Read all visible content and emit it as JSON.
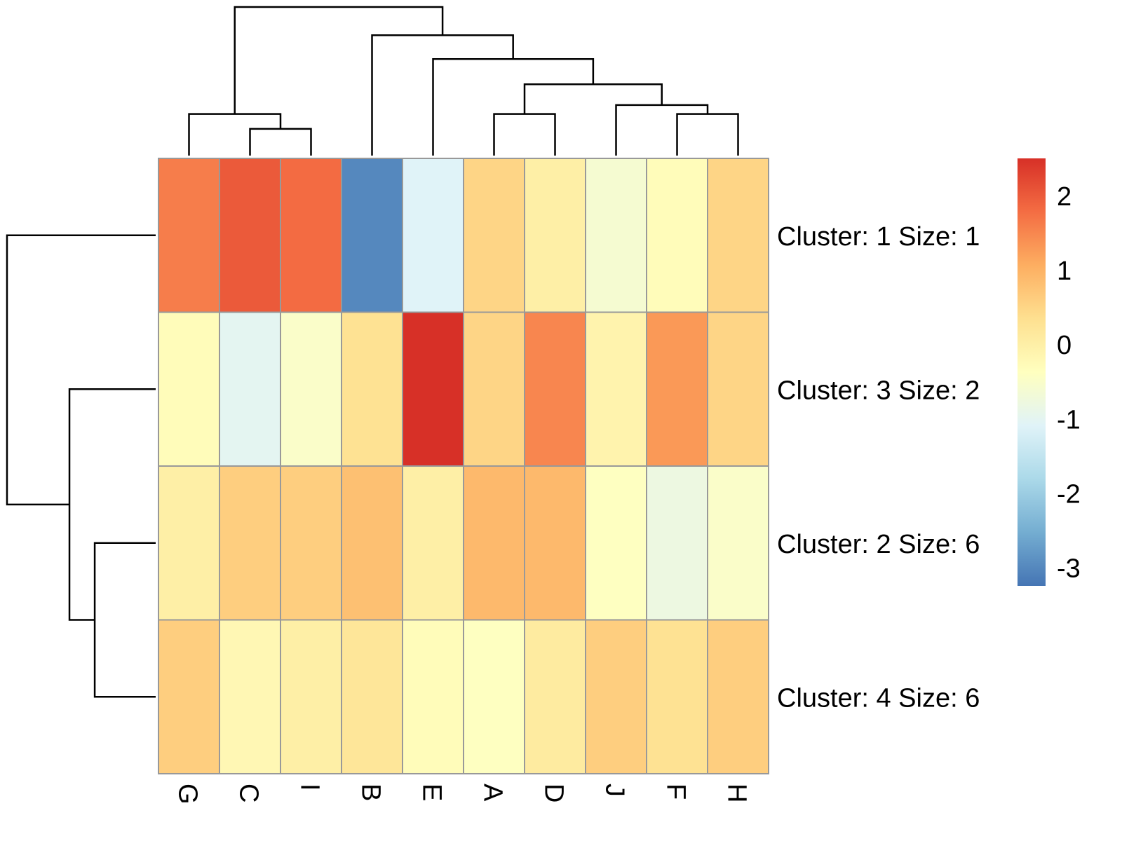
{
  "chart_data": {
    "type": "heatmap",
    "title": "",
    "columns": [
      "G",
      "C",
      "I",
      "B",
      "E",
      "A",
      "D",
      "J",
      "F",
      "H"
    ],
    "rows": [
      {
        "label": "Cluster: 1 Size: 1",
        "values": [
          1.6,
          2.0,
          1.8,
          -3.0,
          -1.1,
          0.5,
          0.0,
          -0.6,
          -0.3,
          0.5
        ]
      },
      {
        "label": "Cluster: 3 Size: 2",
        "values": [
          -0.3,
          -1.0,
          -0.5,
          0.3,
          2.5,
          0.5,
          1.5,
          -0.1,
          1.3,
          0.5
        ]
      },
      {
        "label": "Cluster: 2 Size: 6",
        "values": [
          0.0,
          0.6,
          0.6,
          0.8,
          0.0,
          0.9,
          0.9,
          -0.4,
          -0.8,
          -0.5
        ]
      },
      {
        "label": "Cluster: 4 Size: 6",
        "values": [
          0.6,
          -0.2,
          0.0,
          0.2,
          -0.3,
          -0.4,
          0.1,
          0.6,
          0.3,
          0.6
        ]
      }
    ],
    "colorbar": {
      "range": [
        -3.25,
        2.5
      ],
      "ticks": [
        "2",
        "1",
        "0",
        "-1",
        "-2",
        "-3"
      ],
      "tick_values": [
        2,
        1,
        0,
        -1,
        -2,
        -3
      ],
      "colors": [
        "#4575b4",
        "#74add1",
        "#abd9e9",
        "#e0f3f8",
        "#ffffbf",
        "#fee090",
        "#fdae61",
        "#f46d43",
        "#d73027"
      ]
    },
    "cell_border_color": "#999999",
    "dendrogram_color": "#000000",
    "column_dendrogram": [
      {
        "a": 1,
        "b": 2,
        "h": 0.18
      },
      {
        "a": 0,
        "b": "m0",
        "h": 0.28
      },
      {
        "a": 5,
        "b": 6,
        "h": 0.28
      },
      {
        "a": 8,
        "b": 9,
        "h": 0.28
      },
      {
        "a": 7,
        "b": "m3",
        "h": 0.34
      },
      {
        "a": "m2",
        "b": "m4",
        "h": 0.48
      },
      {
        "a": 4,
        "b": "m5",
        "h": 0.65
      },
      {
        "a": 3,
        "b": "m6",
        "h": 0.81
      },
      {
        "a": "m1",
        "b": "m7",
        "h": 1.0
      }
    ],
    "row_dendrogram": [
      {
        "a": 2,
        "b": 3,
        "h": 0.41
      },
      {
        "a": 1,
        "b": "m0",
        "h": 0.58
      },
      {
        "a": 0,
        "b": "m1",
        "h": 1.0
      }
    ]
  }
}
